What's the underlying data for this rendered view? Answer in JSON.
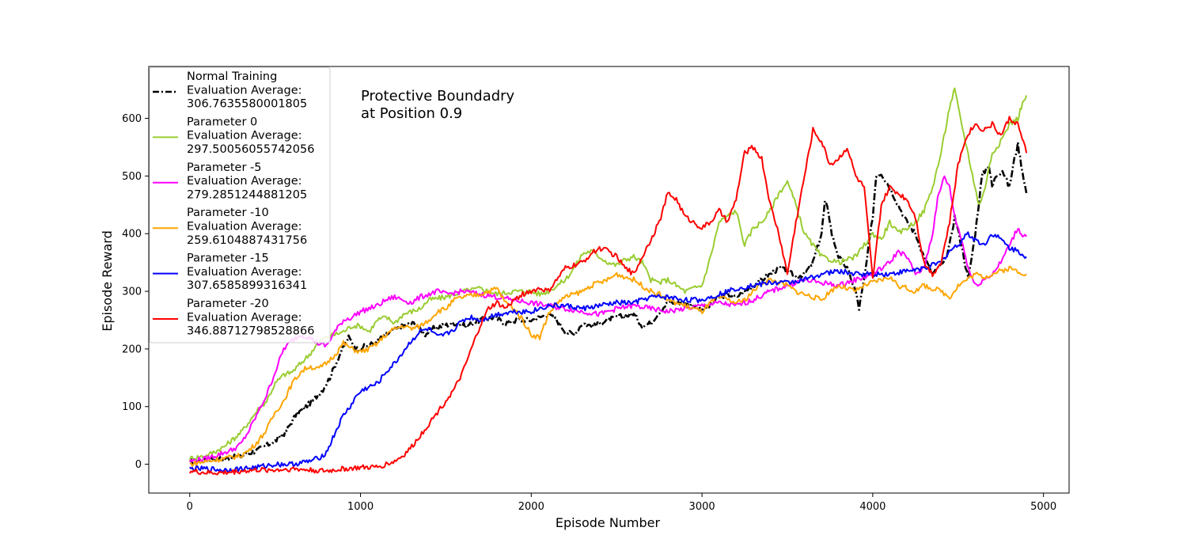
{
  "chart_data": {
    "type": "line",
    "title": "",
    "annotation": [
      "Protective Boundadry",
      " at Position 0.9"
    ],
    "xlabel": "Episode Number",
    "ylabel": "Episode Reward",
    "xlim": [
      -240,
      5150
    ],
    "ylim": [
      -50,
      690
    ],
    "xticks": [
      0,
      1000,
      2000,
      3000,
      4000,
      5000
    ],
    "yticks": [
      0,
      100,
      200,
      300,
      400,
      500,
      600
    ],
    "grid": false,
    "legend_position": "top-left",
    "series": [
      {
        "name": "Normal Training",
        "legend_lines": [
          "Normal Training",
          " Evaluation Average:",
          " 306.7635580001805"
        ],
        "color": "#000000",
        "dash": "dashdot",
        "width": 2.6,
        "x": [
          0,
          100,
          200,
          300,
          400,
          500,
          560,
          620,
          680,
          720,
          780,
          820,
          870,
          930,
          980,
          1030,
          1080,
          1150,
          1250,
          1320,
          1380,
          1420,
          1480,
          1550,
          1620,
          1700,
          1780,
          1850,
          1920,
          2000,
          2100,
          2150,
          2200,
          2250,
          2300,
          2350,
          2400,
          2500,
          2600,
          2650,
          2700,
          2750,
          2800,
          2900,
          3000,
          3050,
          3100,
          3150,
          3200,
          3250,
          3300,
          3350,
          3400,
          3450,
          3500,
          3550,
          3600,
          3650,
          3700,
          3720,
          3740,
          3760,
          3800,
          3850,
          3900,
          3920,
          3950,
          4000,
          4020,
          4050,
          4080,
          4100,
          4150,
          4200,
          4250,
          4300,
          4350,
          4380,
          4420,
          4450,
          4480,
          4520,
          4560,
          4600,
          4640,
          4680,
          4700,
          4720,
          4760,
          4800,
          4830,
          4850,
          4870,
          4900
        ],
        "y": [
          5,
          8,
          10,
          14,
          25,
          40,
          55,
          85,
          100,
          110,
          130,
          150,
          185,
          220,
          200,
          205,
          210,
          225,
          240,
          245,
          225,
          235,
          240,
          245,
          240,
          250,
          255,
          245,
          250,
          250,
          260,
          250,
          230,
          225,
          245,
          240,
          245,
          255,
          260,
          240,
          245,
          265,
          280,
          280,
          270,
          275,
          290,
          295,
          290,
          300,
          310,
          320,
          330,
          340,
          335,
          325,
          330,
          350,
          400,
          455,
          440,
          400,
          360,
          340,
          300,
          270,
          320,
          430,
          500,
          505,
          490,
          480,
          450,
          420,
          400,
          360,
          330,
          340,
          350,
          380,
          430,
          380,
          320,
          400,
          500,
          520,
          480,
          500,
          510,
          480,
          530,
          555,
          520,
          470
        ]
      },
      {
        "name": "Parameter 0",
        "legend_lines": [
          "Parameter 0",
          " Evaluation Average:",
          " 297.50056055742056"
        ],
        "color": "#9acd32",
        "dash": "solid",
        "width": 2,
        "x": [
          0,
          100,
          200,
          300,
          350,
          400,
          450,
          500,
          550,
          600,
          650,
          700,
          750,
          800,
          850,
          900,
          950,
          1000,
          1050,
          1100,
          1150,
          1200,
          1250,
          1300,
          1350,
          1400,
          1500,
          1600,
          1700,
          1800,
          1900,
          2000,
          2050,
          2100,
          2150,
          2200,
          2250,
          2300,
          2350,
          2400,
          2450,
          2500,
          2550,
          2600,
          2650,
          2700,
          2750,
          2800,
          2850,
          2900,
          2950,
          3000,
          3050,
          3100,
          3150,
          3200,
          3250,
          3300,
          3350,
          3400,
          3450,
          3500,
          3550,
          3600,
          3650,
          3700,
          3750,
          3800,
          3850,
          3900,
          3950,
          4000,
          4050,
          4100,
          4150,
          4200,
          4250,
          4300,
          4350,
          4400,
          4450,
          4480,
          4500,
          4550,
          4600,
          4620,
          4650,
          4700,
          4750,
          4800,
          4850,
          4870,
          4900
        ],
        "y": [
          10,
          15,
          30,
          55,
          75,
          95,
          110,
          140,
          155,
          160,
          175,
          190,
          210,
          220,
          225,
          230,
          240,
          240,
          230,
          250,
          255,
          245,
          260,
          265,
          270,
          285,
          290,
          300,
          305,
          295,
          300,
          300,
          295,
          300,
          310,
          320,
          340,
          365,
          370,
          360,
          350,
          345,
          355,
          360,
          350,
          320,
          315,
          320,
          310,
          300,
          305,
          310,
          360,
          420,
          430,
          440,
          380,
          410,
          420,
          440,
          470,
          490,
          450,
          400,
          380,
          360,
          355,
          350,
          355,
          360,
          380,
          400,
          390,
          420,
          400,
          410,
          420,
          440,
          480,
          540,
          620,
          650,
          620,
          550,
          480,
          450,
          470,
          540,
          560,
          590,
          600,
          620,
          640
        ]
      },
      {
        "name": "Parameter -5",
        "legend_lines": [
          "Parameter -5",
          " Evaluation Average:",
          " 279.2851244881205"
        ],
        "color": "#ff00ff",
        "dash": "solid",
        "width": 2,
        "x": [
          0,
          100,
          200,
          250,
          300,
          350,
          400,
          450,
          500,
          550,
          600,
          650,
          700,
          750,
          800,
          850,
          900,
          950,
          1000,
          1050,
          1100,
          1150,
          1200,
          1250,
          1300,
          1350,
          1400,
          1450,
          1500,
          1600,
          1700,
          1800,
          1900,
          2000,
          2100,
          2200,
          2300,
          2400,
          2500,
          2600,
          2700,
          2800,
          2900,
          3000,
          3100,
          3200,
          3300,
          3400,
          3500,
          3600,
          3700,
          3800,
          3900,
          4000,
          4050,
          4100,
          4150,
          4200,
          4250,
          4300,
          4350,
          4380,
          4420,
          4450,
          4480,
          4520,
          4560,
          4600,
          4650,
          4700,
          4750,
          4800,
          4850,
          4870,
          4900
        ],
        "y": [
          5,
          10,
          20,
          25,
          35,
          60,
          90,
          120,
          160,
          200,
          215,
          225,
          220,
          210,
          205,
          230,
          250,
          255,
          265,
          270,
          275,
          285,
          290,
          285,
          280,
          290,
          295,
          300,
          295,
          300,
          295,
          290,
          285,
          280,
          275,
          270,
          265,
          260,
          270,
          275,
          270,
          265,
          270,
          275,
          280,
          275,
          285,
          300,
          310,
          320,
          315,
          310,
          320,
          330,
          340,
          350,
          370,
          360,
          330,
          340,
          400,
          460,
          500,
          480,
          430,
          390,
          340,
          310,
          320,
          330,
          350,
          380,
          410,
          400,
          395
        ]
      },
      {
        "name": "Parameter -10",
        "legend_lines": [
          "Parameter -10",
          " Evaluation Average:",
          " 259.6104887431756"
        ],
        "color": "#ffa500",
        "dash": "solid",
        "width": 2,
        "x": [
          0,
          100,
          200,
          300,
          350,
          400,
          450,
          500,
          550,
          600,
          650,
          700,
          750,
          800,
          850,
          900,
          950,
          1000,
          1050,
          1100,
          1150,
          1200,
          1250,
          1300,
          1350,
          1400,
          1450,
          1500,
          1550,
          1600,
          1700,
          1750,
          1800,
          1850,
          1900,
          1950,
          2000,
          2050,
          2100,
          2150,
          2200,
          2250,
          2300,
          2350,
          2400,
          2450,
          2500,
          2550,
          2600,
          2650,
          2700,
          2750,
          2800,
          2850,
          2900,
          2950,
          3000,
          3050,
          3100,
          3150,
          3200,
          3250,
          3300,
          3350,
          3400,
          3450,
          3500,
          3550,
          3600,
          3650,
          3700,
          3750,
          3800,
          3850,
          3900,
          3950,
          4000,
          4050,
          4100,
          4150,
          4200,
          4250,
          4300,
          4350,
          4400,
          4450,
          4500,
          4550,
          4600,
          4650,
          4700,
          4750,
          4800,
          4850,
          4900
        ],
        "y": [
          0,
          5,
          10,
          15,
          25,
          40,
          60,
          90,
          110,
          140,
          160,
          170,
          165,
          175,
          190,
          210,
          200,
          195,
          200,
          210,
          225,
          235,
          240,
          235,
          240,
          250,
          265,
          270,
          285,
          290,
          295,
          300,
          305,
          280,
          270,
          250,
          225,
          220,
          260,
          280,
          290,
          295,
          300,
          310,
          315,
          320,
          330,
          325,
          320,
          310,
          300,
          295,
          285,
          280,
          275,
          270,
          265,
          280,
          290,
          285,
          280,
          285,
          300,
          315,
          320,
          315,
          310,
          300,
          295,
          290,
          285,
          300,
          310,
          305,
          300,
          310,
          315,
          320,
          325,
          310,
          305,
          300,
          310,
          305,
          300,
          290,
          310,
          320,
          330,
          325,
          330,
          335,
          340,
          335,
          330
        ]
      },
      {
        "name": "Parameter -15",
        "legend_lines": [
          "Parameter -15",
          " Evaluation Average:",
          " 307.6585899316341"
        ],
        "color": "#0000ff",
        "dash": "solid",
        "width": 2,
        "x": [
          0,
          100,
          200,
          300,
          400,
          500,
          600,
          700,
          750,
          800,
          830,
          860,
          900,
          940,
          980,
          1020,
          1060,
          1100,
          1150,
          1200,
          1250,
          1300,
          1350,
          1400,
          1450,
          1500,
          1550,
          1600,
          1650,
          1700,
          1800,
          1900,
          2000,
          2100,
          2200,
          2300,
          2400,
          2500,
          2600,
          2700,
          2800,
          2900,
          3000,
          3100,
          3200,
          3300,
          3400,
          3500,
          3600,
          3700,
          3800,
          3900,
          4000,
          4100,
          4200,
          4300,
          4400,
          4450,
          4500,
          4550,
          4600,
          4650,
          4700,
          4750,
          4800,
          4850,
          4900
        ],
        "y": [
          -8,
          -8,
          -10,
          -8,
          -5,
          0,
          0,
          5,
          10,
          20,
          40,
          60,
          85,
          100,
          120,
          130,
          135,
          140,
          160,
          175,
          195,
          215,
          230,
          235,
          220,
          225,
          235,
          250,
          255,
          250,
          260,
          265,
          265,
          275,
          275,
          270,
          275,
          280,
          280,
          290,
          290,
          285,
          285,
          295,
          305,
          310,
          315,
          315,
          320,
          330,
          335,
          330,
          330,
          330,
          335,
          340,
          350,
          370,
          380,
          400,
          390,
          380,
          400,
          390,
          375,
          370,
          360
        ]
      },
      {
        "name": "Parameter -20",
        "legend_lines": [
          "Parameter -20",
          " Evaluation Average:",
          " 346.88712798528866"
        ],
        "color": "#ff0000",
        "dash": "solid",
        "width": 2,
        "x": [
          0,
          100,
          200,
          300,
          400,
          500,
          600,
          700,
          800,
          900,
          1000,
          1100,
          1150,
          1200,
          1250,
          1300,
          1350,
          1400,
          1450,
          1500,
          1550,
          1600,
          1650,
          1700,
          1750,
          1800,
          1850,
          1900,
          1950,
          2000,
          2050,
          2100,
          2150,
          2200,
          2250,
          2300,
          2350,
          2400,
          2450,
          2500,
          2550,
          2600,
          2650,
          2700,
          2750,
          2800,
          2850,
          2900,
          2950,
          3000,
          3050,
          3100,
          3150,
          3200,
          3250,
          3300,
          3350,
          3400,
          3450,
          3500,
          3550,
          3600,
          3650,
          3700,
          3750,
          3800,
          3850,
          3900,
          3950,
          4000,
          4050,
          4100,
          4150,
          4200,
          4250,
          4300,
          4350,
          4400,
          4450,
          4500,
          4550,
          4600,
          4650,
          4700,
          4750,
          4800,
          4850,
          4900
        ],
        "y": [
          -12,
          -15,
          -15,
          -12,
          -10,
          -10,
          -8,
          -10,
          -12,
          -8,
          -6,
          -5,
          0,
          5,
          15,
          30,
          50,
          70,
          90,
          110,
          130,
          160,
          200,
          240,
          270,
          280,
          270,
          285,
          295,
          300,
          305,
          300,
          320,
          340,
          345,
          350,
          365,
          375,
          370,
          360,
          340,
          330,
          360,
          390,
          420,
          470,
          460,
          430,
          420,
          410,
          420,
          440,
          420,
          460,
          540,
          550,
          530,
          450,
          400,
          330,
          420,
          500,
          580,
          560,
          520,
          530,
          550,
          500,
          480,
          320,
          450,
          480,
          470,
          460,
          430,
          350,
          330,
          350,
          420,
          520,
          570,
          590,
          580,
          590,
          570,
          600,
          590,
          540
        ]
      }
    ]
  }
}
